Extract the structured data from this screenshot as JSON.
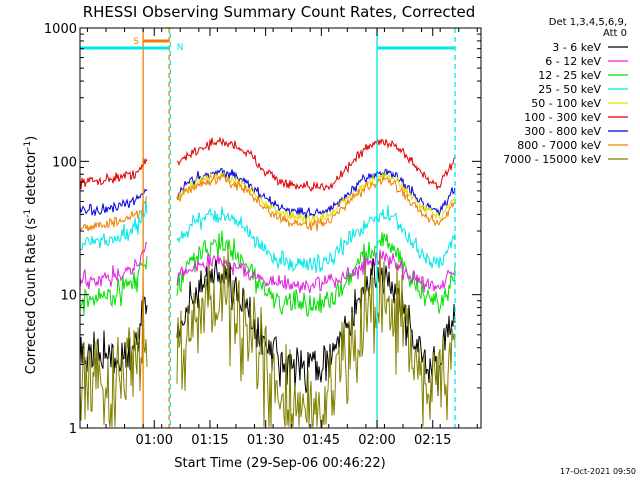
{
  "chart_data": {
    "type": "line",
    "title": "RHESSI Observing Summary Count Rates, Corrected",
    "xlabel": "Start Time (29-Sep-06 00:46:22)",
    "ylabel_main": "Corrected Count Rate (s",
    "ylabel_mid": " detector",
    "ylabel_end": ")",
    "ylabel_sup": "-1",
    "xlim": [
      -6,
      102
    ],
    "ylim": [
      1,
      1000
    ],
    "yscale": "log",
    "x_ticks": [
      {
        "x": 14,
        "label": "01:00"
      },
      {
        "x": 29,
        "label": "01:15"
      },
      {
        "x": 44,
        "label": "01:30"
      },
      {
        "x": 59,
        "label": "01:45"
      },
      {
        "x": 74,
        "label": "02:00"
      },
      {
        "x": 89,
        "label": "02:15"
      }
    ],
    "y_ticks": [
      {
        "y": 1,
        "label": "1"
      },
      {
        "y": 10,
        "label": "10"
      },
      {
        "y": 100,
        "label": "100"
      },
      {
        "y": 1000,
        "label": "1000"
      }
    ],
    "legend_header": [
      "Det 1,3,4,5,6,9,",
      "Att 0"
    ],
    "series": [
      {
        "name": "3 - 6 keV",
        "color": "#000000"
      },
      {
        "name": "6 - 12 keV",
        "color": "#e020e0"
      },
      {
        "name": "12 - 25 keV",
        "color": "#00e000"
      },
      {
        "name": "25 - 50 keV",
        "color": "#00e8e8"
      },
      {
        "name": "50 - 100 keV",
        "color": "#e0e000"
      },
      {
        "name": "100 - 300 keV",
        "color": "#e00000"
      },
      {
        "name": "300 - 800 keV",
        "color": "#0000e0"
      },
      {
        "name": "800 - 7000 keV",
        "color": "#f08000"
      },
      {
        "name": "7000 - 15000 keV",
        "color": "#808000"
      }
    ],
    "curves": [
      {
        "series": "100 - 300 keV",
        "color": "#e00000",
        "noise": 0.03,
        "segments": [
          {
            "x": [
              -6,
              0,
              4,
              7,
              10,
              12
            ],
            "y": [
              70,
              72,
              76,
              78,
              85,
              102
            ]
          },
          {
            "x": [
              20,
              23,
              28,
              32,
              36,
              40,
              44,
              48,
              52,
              56,
              59,
              62,
              66,
              70,
              73,
              76,
              79,
              82,
              85,
              88,
              91,
              95
            ],
            "y": [
              95,
              112,
              132,
              140,
              132,
              110,
              85,
              70,
              64,
              63,
              64,
              68,
              90,
              118,
              136,
              142,
              132,
              110,
              88,
              72,
              66,
              105
            ]
          }
        ]
      },
      {
        "series": "300 - 800 keV",
        "color": "#0000e0",
        "noise": 0.03,
        "segments": [
          {
            "x": [
              -6,
              0,
              4,
              7,
              10,
              12
            ],
            "y": [
              42,
              43,
              45,
              48,
              53,
              62
            ]
          },
          {
            "x": [
              20,
              23,
              28,
              32,
              36,
              40,
              44,
              48,
              52,
              56,
              59,
              62,
              66,
              70,
              73,
              76,
              79,
              82,
              85,
              88,
              91,
              95
            ],
            "y": [
              55,
              70,
              80,
              84,
              78,
              65,
              52,
              45,
              42,
              41,
              42,
              44,
              56,
              70,
              80,
              84,
              78,
              65,
              52,
              45,
              43,
              62
            ]
          }
        ]
      },
      {
        "series": "50 - 100 keV",
        "color": "#e0e000",
        "noise": 0.03,
        "segments": [
          {
            "x": [
              20,
              23,
              28,
              32,
              36,
              40,
              44,
              48,
              52,
              56,
              59,
              62,
              66,
              70,
              73,
              76,
              79,
              82,
              85,
              88,
              91,
              95
            ],
            "y": [
              52,
              64,
              74,
              78,
              72,
              60,
              48,
              41,
              38,
              37,
              38,
              41,
              52,
              64,
              73,
              77,
              72,
              60,
              48,
              41,
              38,
              56
            ]
          }
        ]
      },
      {
        "series": "800 - 7000 keV",
        "color": "#f08000",
        "noise": 0.03,
        "segments": [
          {
            "x": [
              -6,
              0,
              4,
              7,
              10,
              12
            ],
            "y": [
              32,
              33,
              35,
              37,
              40,
              52
            ]
          },
          {
            "x": [
              20,
              23,
              28,
              32,
              36,
              40,
              44,
              48,
              52,
              56,
              59,
              62,
              66,
              70,
              73,
              76,
              79,
              82,
              85,
              88,
              91,
              95
            ],
            "y": [
              50,
              62,
              70,
              74,
              68,
              56,
              44,
              37,
              34,
              33,
              34,
              37,
              48,
              60,
              68,
              72,
              66,
              55,
              44,
              37,
              34,
              52
            ]
          }
        ]
      },
      {
        "series": "25 - 50 keV",
        "color": "#00e8e8",
        "noise": 0.05,
        "segments": [
          {
            "x": [
              -6,
              0,
              4,
              7,
              10,
              12
            ],
            "y": [
              24,
              25,
              27,
              30,
              34,
              44
            ]
          },
          {
            "x": [
              20,
              23,
              28,
              32,
              36,
              40,
              44,
              48,
              52,
              56,
              59,
              62,
              66,
              70,
              73,
              76,
              79,
              82,
              85,
              88,
              91,
              95
            ],
            "y": [
              24,
              32,
              38,
              40,
              36,
              28,
              21,
              18,
              17,
              17,
              17,
              19,
              25,
              32,
              38,
              40,
              36,
              28,
              21,
              18,
              17,
              28
            ]
          }
        ]
      },
      {
        "series": "12 - 25 keV",
        "color": "#00e000",
        "noise": 0.07,
        "segments": [
          {
            "x": [
              -6,
              0,
              4,
              7,
              10,
              12
            ],
            "y": [
              9,
              9.5,
              10.5,
              12,
              14,
              19
            ]
          },
          {
            "x": [
              20,
              23,
              28,
              32,
              36,
              40,
              44,
              48,
              52,
              56,
              59,
              62,
              66,
              70,
              73,
              76,
              79,
              82,
              85,
              88,
              91,
              95
            ],
            "y": [
              11,
              16,
              22,
              24,
              21,
              15,
              10.5,
              8.8,
              8.3,
              8.3,
              8.5,
              9.5,
              13,
              19,
              23,
              25,
              22,
              15.5,
              11,
              9,
              8.6,
              14
            ]
          }
        ]
      },
      {
        "series": "6 - 12 keV",
        "color": "#e020e0",
        "noise": 0.05,
        "segments": [
          {
            "x": [
              -6,
              0,
              4,
              7,
              10,
              12
            ],
            "y": [
              13,
              13.3,
              14,
              15,
              17,
              24
            ]
          },
          {
            "x": [
              20,
              23,
              28,
              32,
              36,
              40,
              44,
              48,
              52,
              56,
              59,
              62,
              66,
              70,
              73,
              76,
              79,
              82,
              85,
              88,
              91,
              95
            ],
            "y": [
              13,
              15.5,
              17.5,
              18,
              16.5,
              14,
              12.5,
              12,
              11.8,
              11.8,
              12,
              12.5,
              14,
              16.5,
              18,
              18.5,
              17,
              14.5,
              13,
              12.2,
              12,
              16
            ]
          }
        ]
      },
      {
        "series": "3 - 6 keV",
        "color": "#000000",
        "noise": 0.12,
        "segments": [
          {
            "x": [
              -6,
              0,
              4,
              7,
              10,
              12
            ],
            "y": [
              3.3,
              3.3,
              3.4,
              3.6,
              4.5,
              11
            ]
          },
          {
            "x": [
              20,
              23,
              28,
              32,
              36,
              40,
              44,
              48,
              52,
              56,
              59,
              62,
              66,
              70,
              73,
              76,
              79,
              82,
              85,
              88,
              91,
              95
            ],
            "y": [
              4.5,
              9,
              12.5,
              13.5,
              11,
              6.5,
              4,
              3,
              2.8,
              2.8,
              2.9,
              3.3,
              6,
              10,
              12.5,
              13.5,
              11,
              6.5,
              4,
              3,
              2.8,
              9
            ]
          }
        ]
      },
      {
        "series": "7000 - 15000 keV",
        "color": "#808000",
        "noise": 0.3,
        "segments": [
          {
            "x": [
              -6,
              0,
              4,
              7,
              10,
              12
            ],
            "y": [
              2.2,
              2.2,
              2.3,
              2.6,
              3.2,
              8
            ]
          },
          {
            "x": [
              20,
              23,
              28,
              32,
              36,
              40,
              44,
              48,
              52,
              56,
              59,
              62,
              66,
              70,
              73,
              76,
              79,
              82,
              85,
              88,
              91,
              95
            ],
            "y": [
              3,
              6.5,
              9,
              9.5,
              7.5,
              4.5,
              2.5,
              1.6,
              1.3,
              1.3,
              1.4,
              1.8,
              3.5,
              6.5,
              8.5,
              9.2,
              7.5,
              4.5,
              2.6,
              2,
              1.9,
              6
            ]
          }
        ]
      }
    ],
    "annotations": {
      "S": {
        "label": "S",
        "color": "#f08000",
        "x_start": 11,
        "x_end": 18
      },
      "N": {
        "label": "N",
        "color": "#00e8e8"
      },
      "solid_lines": [
        {
          "x": 11,
          "color": "#f08000"
        },
        {
          "x": 74,
          "color": "#00e8e8"
        }
      ],
      "dashed_lines": [
        {
          "x": 18,
          "colors": [
            "#f08000",
            "#00e8e8"
          ]
        },
        {
          "x": 95,
          "colors": [
            "#00e8e8"
          ]
        }
      ],
      "night_bars": [
        {
          "x_start": -6,
          "x_end": 18
        },
        {
          "x_start": 74,
          "x_end": 95
        }
      ]
    },
    "timestamp": "17-Oct-2021 09:50"
  }
}
